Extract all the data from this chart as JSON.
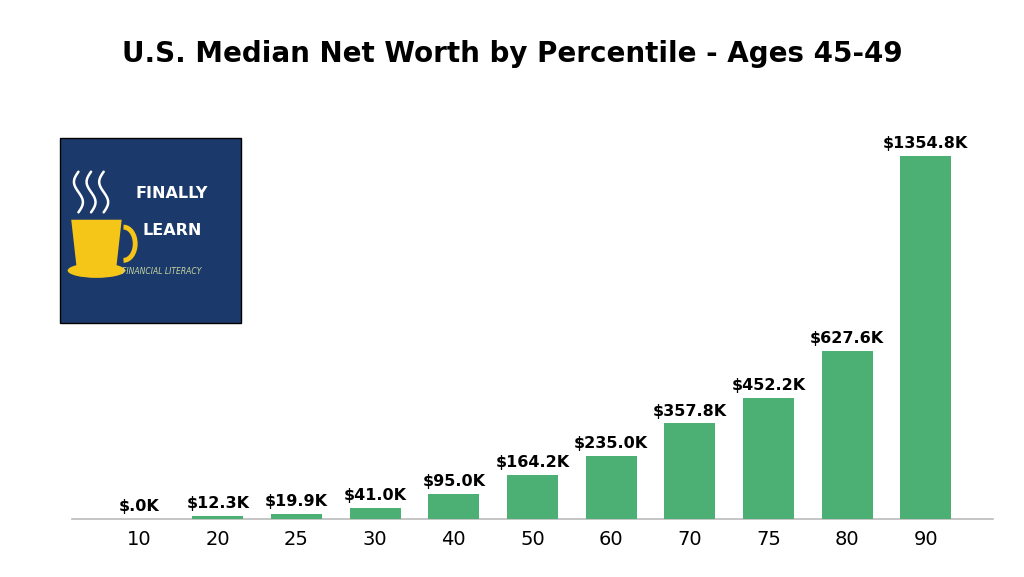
{
  "title": "U.S. Median Net Worth by Percentile - Ages 45-49",
  "categories": [
    "10",
    "20",
    "25",
    "30",
    "40",
    "50",
    "60",
    "70",
    "75",
    "80",
    "90"
  ],
  "values": [
    0.0,
    12.3,
    19.9,
    41.0,
    95.0,
    164.2,
    235.0,
    357.8,
    452.2,
    627.6,
    1354.8
  ],
  "labels": [
    "$.0K",
    "$12.3K",
    "$19.9K",
    "$41.0K",
    "$95.0K",
    "$164.2K",
    "$235.0K",
    "$357.8K",
    "$452.2K",
    "$627.6K",
    "$1354.8K"
  ],
  "bar_color": "#4CAF73",
  "background_color": "#ffffff",
  "title_fontsize": 20,
  "label_fontsize": 11.5,
  "tick_fontsize": 14,
  "ylim": [
    0,
    1550
  ],
  "logo_box_color": "#1b3a6b",
  "logo_accent_color": "#f5c518",
  "logo_text_color": "#ffffff",
  "logo_subtext_color": "#c8d4a0"
}
